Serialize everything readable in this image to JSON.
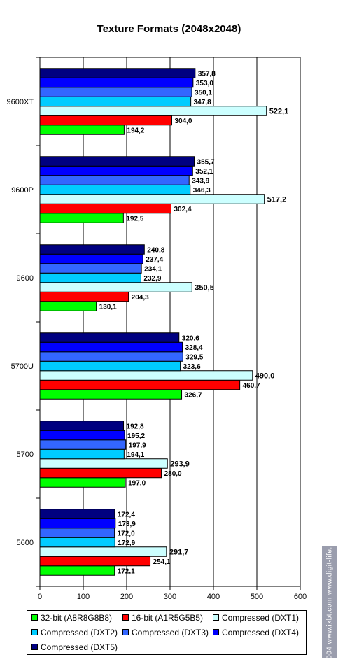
{
  "chart_data": {
    "type": "bar",
    "orientation": "horizontal",
    "title": "Texture Formats (2048x2048)",
    "categories": [
      "9600XT",
      "9600P",
      "9600",
      "5700U",
      "5700",
      "5600"
    ],
    "series": [
      {
        "name": "32-bit (A8R8G8B8)",
        "color": "#00ff00",
        "values": [
          194.2,
          192.5,
          130.1,
          326.7,
          197.0,
          172.1
        ],
        "labels": [
          "194,2",
          "192,5",
          "130,1",
          "326,7",
          "197,0",
          "172,1"
        ]
      },
      {
        "name": "16-bit (A1R5G5B5)",
        "color": "#ff0000",
        "values": [
          304.0,
          302.4,
          204.3,
          460.7,
          280.0,
          254.1
        ],
        "labels": [
          "304,0",
          "302,4",
          "204,3",
          "460,7",
          "280,0",
          "254,1"
        ]
      },
      {
        "name": "Compressed (DXT1)",
        "color": "#ccffff",
        "values": [
          522.1,
          517.2,
          350.5,
          490.0,
          293.9,
          291.7
        ],
        "labels": [
          "522,1",
          "517,2",
          "350,5",
          "490,0",
          "293,9",
          "291,7"
        ]
      },
      {
        "name": "Compressed (DXT2)",
        "color": "#00ccff",
        "values": [
          347.8,
          346.3,
          232.9,
          323.6,
          194.1,
          172.9
        ],
        "labels": [
          "347,8",
          "346,3",
          "232,9",
          "323,6",
          "194,1",
          "172,9"
        ]
      },
      {
        "name": "Compressed (DXT3)",
        "color": "#3366ff",
        "values": [
          350.1,
          343.9,
          234.1,
          329.5,
          197.9,
          172.0
        ],
        "labels": [
          "350,1",
          "343,9",
          "234,1",
          "329,5",
          "197,9",
          "172,0"
        ]
      },
      {
        "name": "Compressed (DXT4)",
        "color": "#0000ff",
        "values": [
          353.0,
          352.1,
          237.4,
          328.4,
          195.2,
          173.9
        ],
        "labels": [
          "353,0",
          "352,1",
          "237,4",
          "328,4",
          "195,2",
          "173,9"
        ]
      },
      {
        "name": "Compressed (DXT5)",
        "color": "#000080",
        "values": [
          357.8,
          355.7,
          240.8,
          320.6,
          192.8,
          172.4
        ],
        "labels": [
          "357,8",
          "355,7",
          "240,8",
          "320,6",
          "192,8",
          "172,4"
        ]
      }
    ],
    "xlim": [
      0,
      600
    ],
    "xticks": [
      "0",
      "100",
      "200",
      "300",
      "400",
      "500",
      "600"
    ],
    "grid": true,
    "legend_position": "bottom"
  },
  "watermark": "© 2004 www.ixbt.com  www.digit-life.com"
}
